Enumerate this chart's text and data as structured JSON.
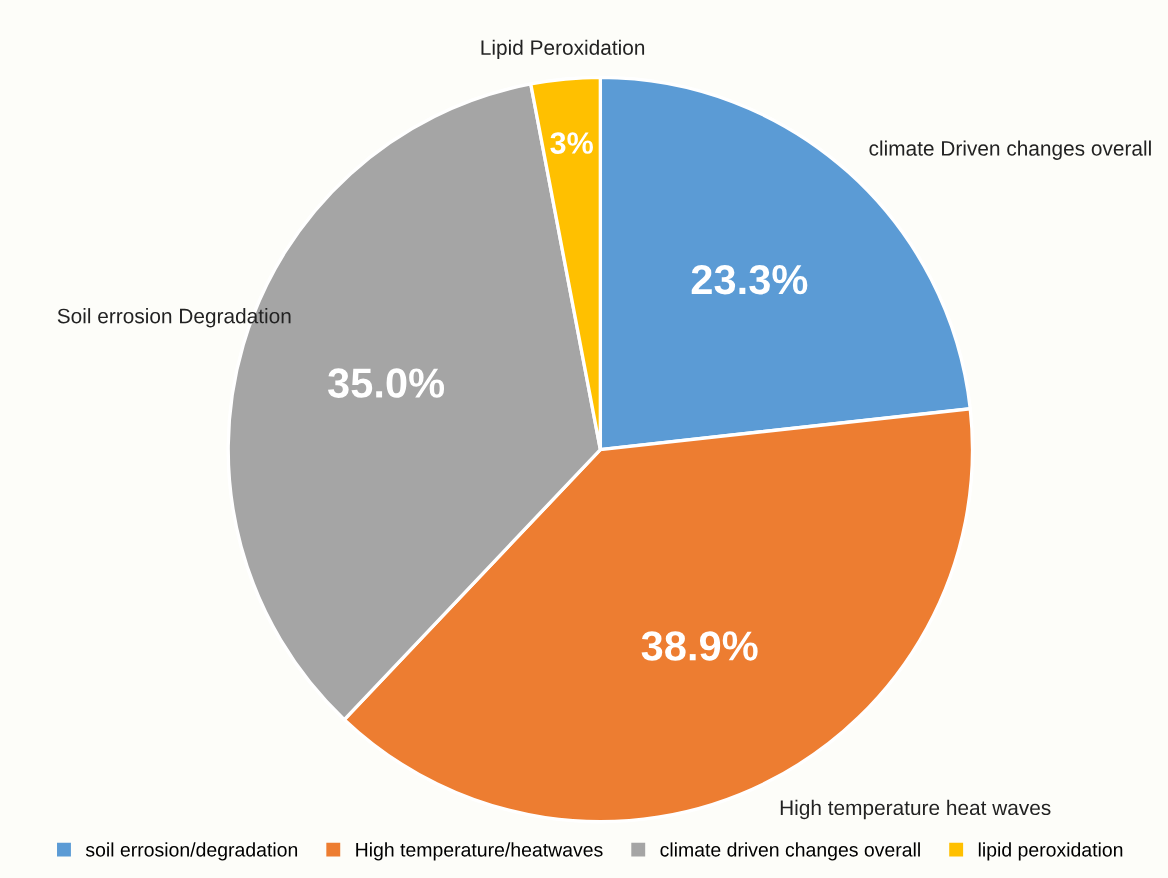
{
  "chart_data": {
    "type": "pie",
    "categories": [
      "soil errosion/degradation",
      "High temperature/heatwaves",
      "climate driven changes overall",
      "lipid peroxidation"
    ],
    "values": [
      23.3,
      38.9,
      35.0,
      3
    ],
    "colors": [
      "#5b9bd5",
      "#ed7d31",
      "#a5a5a5",
      "#ffc000"
    ],
    "value_labels": [
      "23.3%",
      "38.9%",
      "35.0%",
      "3%"
    ],
    "annotations": [
      "climate Driven changes overall",
      "High temperature heat waves",
      "Soil errosion Degradation",
      "Lipid Peroxidation"
    ],
    "legend": "bottom"
  }
}
